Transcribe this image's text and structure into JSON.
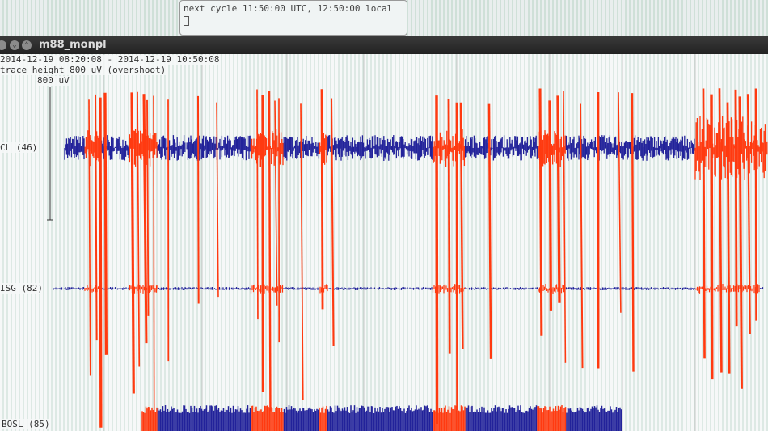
{
  "terminal": {
    "text": "next cycle 11:50:00 UTC, 12:50:00 local"
  },
  "window": {
    "title": "m88_monpl"
  },
  "plot": {
    "time_range": "2014-12-19 08:20:08 - 2014-12-19 10:50:08",
    "trace_height": "trace height 800 uV (overshoot)",
    "scale_label": "800 uV",
    "stations": [
      {
        "label": "CL (46)"
      },
      {
        "label": "ISG (82)"
      },
      {
        "label": "BOSL (85)"
      }
    ]
  },
  "colors": {
    "trace": "#22229a",
    "event": "#ff3a10",
    "titlebar": "#2a2a2a"
  }
}
